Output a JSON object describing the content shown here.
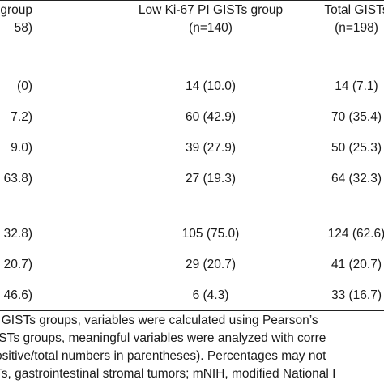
{
  "header": {
    "col1_line1": "l GISTs group",
    "col1_line2": "58)",
    "col2_line1": "Low Ki-67 PI GISTs group",
    "col2_line2": "(n=140)",
    "col3_line1": "Total GISTs",
    "col3_line2": "(n=198)"
  },
  "rows": [
    {
      "c1": "(0)",
      "c2": "14 (10.0)",
      "c3": "14 (7.1)"
    },
    {
      "c1": "7.2)",
      "c2": "60 (42.9)",
      "c3": "70 (35.4)"
    },
    {
      "c1": "9.0)",
      "c2": "39 (27.9)",
      "c3": "50 (25.3)"
    },
    {
      "c1": "63.8)",
      "c2": "27 (19.3)",
      "c3": "64 (32.3)"
    },
    {
      "c1": "32.8)",
      "c2": "105 (75.0)",
      "c3": "124 (62.6)"
    },
    {
      "c1": "20.7)",
      "c2": "29 (20.7)",
      "c3": "41 (20.7)"
    },
    {
      "c1": "46.6)",
      "c2": "6 (4.3)",
      "c3": "33 (16.7)"
    }
  ],
  "footnotes": [
    "l GISTs groups, variables were calculated using Pearson’s",
    "ISTs groups, meaningful variables were analyzed with corre",
    "ositive/total numbers in parentheses). Percentages may not",
    "Ts, gastrointestinal stromal tumors; mNIH, modified National I"
  ]
}
